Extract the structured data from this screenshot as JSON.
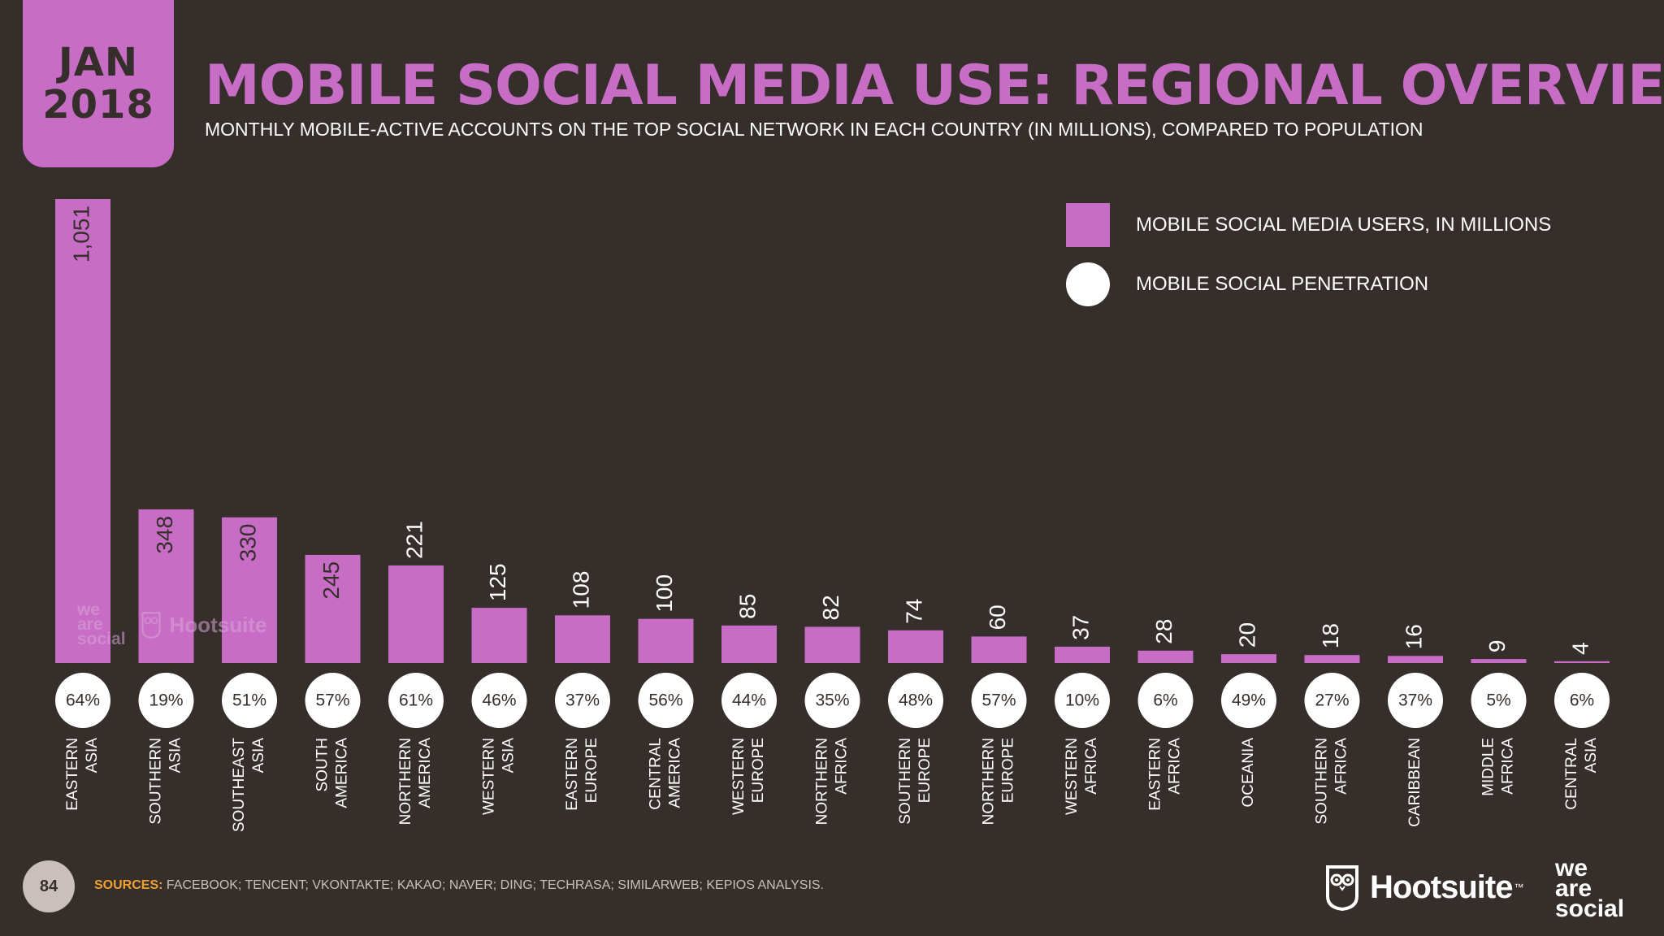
{
  "header": {
    "date_month": "JAN",
    "date_year": "2018",
    "title": "MOBILE SOCIAL MEDIA USE: REGIONAL OVERVIEW",
    "subtitle": "MONTHLY MOBILE-ACTIVE ACCOUNTS ON THE TOP SOCIAL NETWORK IN EACH COUNTRY (IN MILLIONS), COMPARED TO POPULATION"
  },
  "legend": {
    "bars_label": "MOBILE SOCIAL MEDIA USERS, IN MILLIONS",
    "dots_label": "MOBILE SOCIAL PENETRATION"
  },
  "colors": {
    "background": "#362e2b",
    "accent": "#c86dc6",
    "text": "#ffffff",
    "sources_label": "#f0a030"
  },
  "chart_data": {
    "type": "bar",
    "categories": [
      [
        "EASTERN",
        "ASIA"
      ],
      [
        "SOUTHERN",
        "ASIA"
      ],
      [
        "SOUTHEAST",
        "ASIA"
      ],
      [
        "SOUTH",
        "AMERICA"
      ],
      [
        "NORTHERN",
        "AMERICA"
      ],
      [
        "WESTERN",
        "ASIA"
      ],
      [
        "EASTERN",
        "EUROPE"
      ],
      [
        "CENTRAL",
        "AMERICA"
      ],
      [
        "WESTERN",
        "EUROPE"
      ],
      [
        "NORTHERN",
        "AFRICA"
      ],
      [
        "SOUTHERN",
        "EUROPE"
      ],
      [
        "NORTHERN",
        "EUROPE"
      ],
      [
        "WESTERN",
        "AFRICA"
      ],
      [
        "EASTERN",
        "AFRICA"
      ],
      [
        "OCEANIA"
      ],
      [
        "SOUTHERN",
        "AFRICA"
      ],
      [
        "CARIBBEAN"
      ],
      [
        "MIDDLE",
        "AFRICA"
      ],
      [
        "CENTRAL",
        "ASIA"
      ]
    ],
    "values": [
      1051,
      348,
      330,
      245,
      221,
      125,
      108,
      100,
      85,
      82,
      74,
      60,
      37,
      28,
      20,
      18,
      16,
      9,
      4
    ],
    "value_labels": [
      "1,051",
      "348",
      "330",
      "245",
      "221",
      "125",
      "108",
      "100",
      "85",
      "82",
      "74",
      "60",
      "37",
      "28",
      "20",
      "18",
      "16",
      "9",
      "4"
    ],
    "penetration": [
      "64%",
      "19%",
      "51%",
      "57%",
      "61%",
      "46%",
      "37%",
      "56%",
      "44%",
      "35%",
      "48%",
      "57%",
      "10%",
      "6%",
      "49%",
      "27%",
      "37%",
      "5%",
      "6%"
    ],
    "ylim": [
      0,
      1051
    ]
  },
  "watermark": {
    "was": [
      "we",
      "are",
      "social"
    ],
    "hootsuite": "Hootsuite"
  },
  "footer": {
    "page_number": "84",
    "sources_label": "SOURCES:",
    "sources_text": "FACEBOOK; TENCENT; VKONTAKTE; KAKAO; NAVER; DING; TECHRASA; SIMILARWEB; KEPIOS ANALYSIS.",
    "hootsuite": "Hootsuite",
    "hootsuite_tm": "™",
    "was": [
      "we",
      "are",
      "social"
    ]
  }
}
